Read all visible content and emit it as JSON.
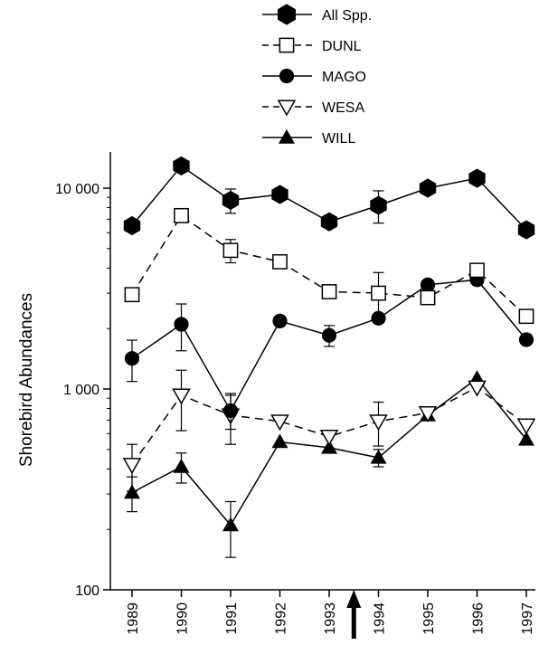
{
  "chart_data": {
    "type": "line",
    "title": "",
    "xlabel": "",
    "ylabel": "Shorebird Abundances",
    "y_scale": "log",
    "ylim": [
      100,
      20000
    ],
    "y_ticks": [
      100,
      1000,
      10000
    ],
    "y_tick_labels": [
      "100",
      "1 000",
      "10 000"
    ],
    "x": [
      1989,
      1990,
      1991,
      1992,
      1993,
      1994,
      1995,
      1996,
      1997
    ],
    "x_tick_labels": [
      "1989",
      "1990",
      "1991",
      "1992",
      "1993",
      "1994",
      "1995",
      "1996",
      "1997"
    ],
    "grid": false,
    "legend_position": "top",
    "annotation_arrow_at": 1993.5,
    "series": [
      {
        "name": "All Spp.",
        "marker": "hexagon-filled",
        "line": "solid",
        "values": [
          6500,
          12900,
          8700,
          9300,
          6800,
          8200,
          10000,
          11200,
          6200
        ],
        "error": [
          null,
          null,
          1200,
          null,
          null,
          1500,
          null,
          null,
          null
        ]
      },
      {
        "name": "DUNL",
        "marker": "square-open",
        "line": "dashed",
        "values": [
          2950,
          7300,
          4900,
          4300,
          3050,
          3000,
          2850,
          3900,
          2300
        ],
        "error": [
          null,
          null,
          650,
          null,
          null,
          800,
          null,
          null,
          null
        ]
      },
      {
        "name": "MAGO",
        "marker": "circle-filled",
        "line": "solid",
        "values": [
          1420,
          2100,
          780,
          2180,
          1850,
          2250,
          3300,
          3500,
          1760
        ],
        "error": [
          330,
          550,
          150,
          null,
          220,
          null,
          null,
          null,
          null
        ]
      },
      {
        "name": "WESA",
        "marker": "triangle-down-open",
        "line": "dashed",
        "values": [
          420,
          930,
          740,
          690,
          580,
          690,
          760,
          1020,
          660
        ],
        "error": [
          110,
          310,
          210,
          null,
          null,
          170,
          null,
          null,
          null
        ]
      },
      {
        "name": "WILL",
        "marker": "triangle-up-filled",
        "line": "solid",
        "values": [
          305,
          410,
          210,
          545,
          510,
          455,
          740,
          1130,
          560
        ],
        "error": [
          60,
          70,
          65,
          null,
          null,
          45,
          null,
          null,
          null
        ]
      }
    ]
  }
}
